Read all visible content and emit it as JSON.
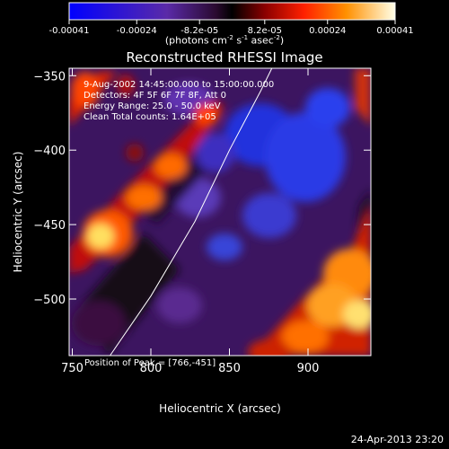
{
  "colorbar": {
    "tick_labels": [
      "-0.00041",
      "-0.00024",
      "-8.2e-05",
      "8.2e-05",
      "0.00024",
      "0.00041"
    ],
    "range": [
      -0.00041,
      0.00041
    ],
    "unit_label_parts": [
      "(photons cm",
      "-2",
      " s",
      "-1",
      " asec",
      "-2",
      ")"
    ]
  },
  "chart_data": {
    "type": "heatmap",
    "title": "Reconstructed RHESSI Image",
    "xlabel": "Heliocentric X (arcsec)",
    "ylabel": "Heliocentric Y (arcsec)",
    "xlim": [
      748,
      940
    ],
    "ylim": [
      -538,
      -345
    ],
    "xticks": [
      750,
      800,
      850,
      900
    ],
    "yticks": [
      -350,
      -400,
      -450,
      -500
    ],
    "colormap": [
      "#0000ff",
      "#5a2aa8",
      "#3a1040",
      "#000000",
      "#7a0000",
      "#ff2000",
      "#ff8000",
      "#ffe000",
      "#ffffe0"
    ],
    "peak": [
      766,
      -451
    ],
    "annotations": [
      "9-Aug-2002 14:45:00.000 to 15:00:00.000",
      "Detectors: 4F 5F 6F 7F 8F, Att 0",
      "Energy Range: 25.0 - 50.0 keV",
      "Clean    Total counts: 1.64E+05"
    ],
    "peak_text": "Position of Peak = [766,-451]",
    "limb_curve": [
      [
        774,
        -538
      ],
      [
        800,
        -498
      ],
      [
        828,
        -448
      ],
      [
        850,
        -400
      ],
      [
        870,
        -360
      ],
      [
        877,
        -345
      ]
    ]
  },
  "footer_text": "24-Apr-2013 23:20"
}
